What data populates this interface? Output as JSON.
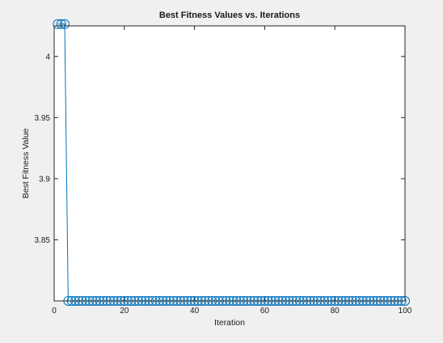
{
  "chart_data": {
    "type": "line",
    "title": "Best Fitness Values vs. Iterations",
    "xlabel": "Iteration",
    "ylabel": "Best Fitness Value",
    "xlim": [
      0,
      100
    ],
    "ylim": [
      3.8,
      4.025
    ],
    "xticks": [
      0,
      20,
      40,
      60,
      80,
      100
    ],
    "xtick_labels": [
      "0",
      "20",
      "40",
      "60",
      "80",
      "100"
    ],
    "yticks": [
      3.85,
      3.9,
      3.95,
      4
    ],
    "ytick_labels": [
      "3.85",
      "3.9",
      "3.95",
      "4"
    ],
    "grid": false,
    "marker": "circle",
    "series": [
      {
        "color": "#0072bd",
        "x": [
          1,
          2,
          3,
          4,
          5,
          6,
          7,
          8,
          9,
          10,
          11,
          12,
          13,
          14,
          15,
          16,
          17,
          18,
          19,
          20,
          21,
          22,
          23,
          24,
          25,
          26,
          27,
          28,
          29,
          30,
          31,
          32,
          33,
          34,
          35,
          36,
          37,
          38,
          39,
          40,
          41,
          42,
          43,
          44,
          45,
          46,
          47,
          48,
          49,
          50,
          51,
          52,
          53,
          54,
          55,
          56,
          57,
          58,
          59,
          60,
          61,
          62,
          63,
          64,
          65,
          66,
          67,
          68,
          69,
          70,
          71,
          72,
          73,
          74,
          75,
          76,
          77,
          78,
          79,
          80,
          81,
          82,
          83,
          84,
          85,
          86,
          87,
          88,
          89,
          90,
          91,
          92,
          93,
          94,
          95,
          96,
          97,
          98,
          99,
          100
        ],
        "y": [
          4.0265,
          4.0265,
          4.0265,
          3.8,
          3.8,
          3.8,
          3.8,
          3.8,
          3.8,
          3.8,
          3.8,
          3.8,
          3.8,
          3.8,
          3.8,
          3.8,
          3.8,
          3.8,
          3.8,
          3.8,
          3.8,
          3.8,
          3.8,
          3.8,
          3.8,
          3.8,
          3.8,
          3.8,
          3.8,
          3.8,
          3.8,
          3.8,
          3.8,
          3.8,
          3.8,
          3.8,
          3.8,
          3.8,
          3.8,
          3.8,
          3.8,
          3.8,
          3.8,
          3.8,
          3.8,
          3.8,
          3.8,
          3.8,
          3.8,
          3.8,
          3.8,
          3.8,
          3.8,
          3.8,
          3.8,
          3.8,
          3.8,
          3.8,
          3.8,
          3.8,
          3.8,
          3.8,
          3.8,
          3.8,
          3.8,
          3.8,
          3.8,
          3.8,
          3.8,
          3.8,
          3.8,
          3.8,
          3.8,
          3.8,
          3.8,
          3.8,
          3.8,
          3.8,
          3.8,
          3.8,
          3.8,
          3.8,
          3.8,
          3.8,
          3.8,
          3.8,
          3.8,
          3.8,
          3.8,
          3.8,
          3.8,
          3.8,
          3.8,
          3.8,
          3.8,
          3.8,
          3.8,
          3.8,
          3.8,
          3.8
        ]
      }
    ]
  }
}
